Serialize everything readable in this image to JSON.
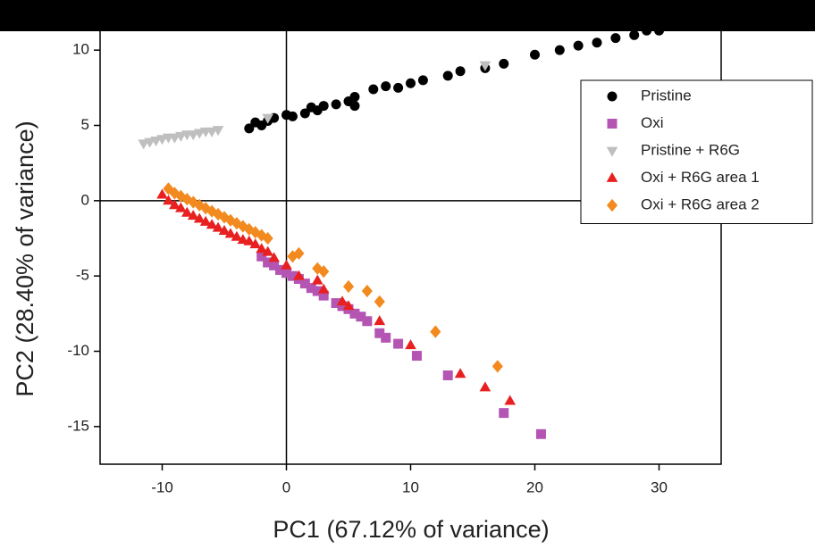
{
  "chart_data": {
    "type": "scatter",
    "xlabel": "PC1 (67.12% of variance)",
    "ylabel": "PC2 (28.40% of variance)",
    "xlim": [
      -15,
      35
    ],
    "ylim": [
      -17.5,
      12.5
    ],
    "xticks": [
      -10,
      0,
      10,
      20,
      30
    ],
    "yticks": [
      -15,
      -10,
      -5,
      0,
      5,
      10
    ],
    "zero_lines": true,
    "legend": "right",
    "series": [
      {
        "name": "Pristine",
        "color": "#000000",
        "marker": "circle",
        "x": [
          -3,
          -2.5,
          -2,
          -1.5,
          -1,
          0,
          0.5,
          1.5,
          2,
          2.5,
          3,
          4,
          5,
          5.5,
          5.5,
          7,
          8,
          9,
          10,
          11,
          13,
          14,
          16,
          17.5,
          20,
          22,
          23.5,
          25,
          26.5,
          28,
          29,
          30
        ],
        "y": [
          4.8,
          5.2,
          5.0,
          5.3,
          5.5,
          5.7,
          5.6,
          5.8,
          6.2,
          6.0,
          6.3,
          6.4,
          6.6,
          6.9,
          6.3,
          7.4,
          7.6,
          7.5,
          7.8,
          8.0,
          8.3,
          8.6,
          8.8,
          9.1,
          9.7,
          10.0,
          10.3,
          10.5,
          10.8,
          11.0,
          11.3,
          11.3
        ]
      },
      {
        "name": "Oxi",
        "color": "#b455b4",
        "marker": "square",
        "x": [
          -2,
          -1.5,
          -1,
          -0.5,
          0,
          0.5,
          1,
          1.5,
          2,
          2.5,
          3,
          4,
          4.5,
          5,
          5.5,
          6,
          6.5,
          7.5,
          8,
          9,
          10.5,
          13,
          17.5,
          20.5
        ],
        "y": [
          -3.7,
          -4.1,
          -4.3,
          -4.6,
          -4.8,
          -5.0,
          -5.2,
          -5.5,
          -5.8,
          -6.0,
          -6.3,
          -6.8,
          -7.0,
          -7.2,
          -7.5,
          -7.7,
          -8.0,
          -8.8,
          -9.1,
          -9.5,
          -10.3,
          -11.6,
          -14.1,
          -15.5
        ]
      },
      {
        "name": "Pristine + R6G",
        "color": "#bfbfbf",
        "marker": "triangle-down",
        "x": [
          -11.5,
          -11,
          -10.5,
          -10,
          -9.5,
          -9,
          -8.5,
          -8,
          -7.5,
          -7,
          -6.5,
          -6,
          -5.5,
          -1.5,
          16
        ],
        "y": [
          3.8,
          3.9,
          4.0,
          4.1,
          4.2,
          4.2,
          4.3,
          4.4,
          4.4,
          4.5,
          4.6,
          4.6,
          4.7,
          5.5,
          9.0
        ]
      },
      {
        "name": "Oxi + R6G area 1",
        "color": "#e82020",
        "marker": "triangle-up",
        "x": [
          -10,
          -9.5,
          -9,
          -8.5,
          -8,
          -7.5,
          -7,
          -6.5,
          -6,
          -5.5,
          -5,
          -4.5,
          -4,
          -3.5,
          -3,
          -2.5,
          -2,
          -1.5,
          -1,
          0,
          1,
          2.5,
          3,
          4.5,
          5,
          7.5,
          10,
          14,
          16,
          18
        ],
        "y": [
          0.4,
          0,
          -0.3,
          -0.5,
          -0.8,
          -1.0,
          -1.2,
          -1.4,
          -1.6,
          -1.8,
          -2.0,
          -2.2,
          -2.4,
          -2.6,
          -2.7,
          -2.9,
          -3.2,
          -3.4,
          -3.8,
          -4.3,
          -5.0,
          -5.3,
          -5.9,
          -6.7,
          -7.0,
          -8.0,
          -9.6,
          -11.5,
          -12.4,
          -13.3
        ]
      },
      {
        "name": "Oxi + R6G area 2",
        "color": "#f28a1f",
        "marker": "diamond",
        "x": [
          -9.5,
          -9,
          -8.5,
          -8,
          -7.5,
          -7,
          -6.5,
          -6,
          -5.5,
          -5,
          -4.5,
          -4,
          -3.5,
          -3,
          -2.5,
          -2,
          -1.5,
          0.5,
          1,
          2.5,
          3,
          5,
          6.5,
          7.5,
          12,
          17
        ],
        "y": [
          0.8,
          0.5,
          0.3,
          0.1,
          -0.1,
          -0.3,
          -0.5,
          -0.7,
          -0.9,
          -1.1,
          -1.3,
          -1.5,
          -1.7,
          -1.9,
          -2.1,
          -2.3,
          -2.5,
          -3.7,
          -3.5,
          -4.5,
          -4.7,
          -5.7,
          -6.0,
          -6.7,
          -8.7,
          -11.0
        ]
      }
    ]
  }
}
